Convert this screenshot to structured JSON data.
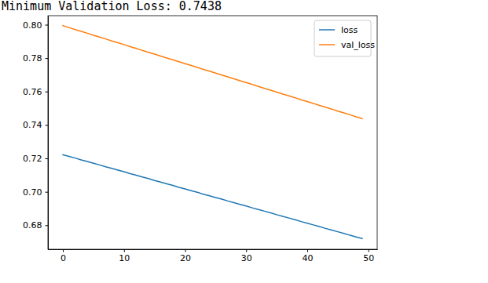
{
  "chart_data": {
    "type": "line",
    "title": "Minimum Validation Loss: 0.7438",
    "x": [
      0,
      1,
      2,
      3,
      4,
      5,
      6,
      7,
      8,
      9,
      10,
      11,
      12,
      13,
      14,
      15,
      16,
      17,
      18,
      19,
      20,
      21,
      22,
      23,
      24,
      25,
      26,
      27,
      28,
      29,
      30,
      31,
      32,
      33,
      34,
      35,
      36,
      37,
      38,
      39,
      40,
      41,
      42,
      43,
      44,
      45,
      46,
      47,
      48,
      49
    ],
    "series": [
      {
        "name": "loss",
        "color": "#1f77b4",
        "values": [
          0.7222,
          0.7212,
          0.7202,
          0.7191,
          0.7181,
          0.7171,
          0.7161,
          0.715,
          0.714,
          0.713,
          0.712,
          0.7109,
          0.7099,
          0.7089,
          0.7079,
          0.7068,
          0.7058,
          0.7048,
          0.7038,
          0.7027,
          0.7017,
          0.7007,
          0.6997,
          0.6986,
          0.6976,
          0.6966,
          0.6956,
          0.6945,
          0.6935,
          0.6925,
          0.6915,
          0.6904,
          0.6894,
          0.6884,
          0.6874,
          0.6863,
          0.6853,
          0.6843,
          0.6833,
          0.6822,
          0.6812,
          0.6802,
          0.6792,
          0.6781,
          0.6771,
          0.6761,
          0.6751,
          0.674,
          0.673,
          0.672
        ]
      },
      {
        "name": "val_loss",
        "color": "#ff7f0e",
        "values": [
          0.7994,
          0.7983,
          0.7971,
          0.796,
          0.7949,
          0.7937,
          0.7926,
          0.7915,
          0.7903,
          0.7892,
          0.7881,
          0.7869,
          0.7858,
          0.7846,
          0.7835,
          0.7824,
          0.7812,
          0.7801,
          0.779,
          0.7778,
          0.7767,
          0.7756,
          0.7744,
          0.7733,
          0.7722,
          0.771,
          0.7699,
          0.7688,
          0.7676,
          0.7665,
          0.7654,
          0.7642,
          0.7631,
          0.7619,
          0.7608,
          0.7597,
          0.7585,
          0.7574,
          0.7563,
          0.7551,
          0.754,
          0.7529,
          0.7517,
          0.7506,
          0.7495,
          0.7483,
          0.7472,
          0.7461,
          0.7449,
          0.7438
        ]
      }
    ],
    "xlim": [
      -2.45,
      51.45
    ],
    "xticks": [
      0,
      10,
      20,
      30,
      40,
      50
    ],
    "ylim": [
      0.6656,
      0.8054
    ],
    "yticks": [
      0.68,
      {
        "value": 0.7,
        "label": "0.70"
      },
      0.72,
      0.74,
      0.76,
      0.78,
      {
        "value": 0.8,
        "label": "0.80"
      }
    ],
    "legend": "upper right",
    "grid": false
  }
}
